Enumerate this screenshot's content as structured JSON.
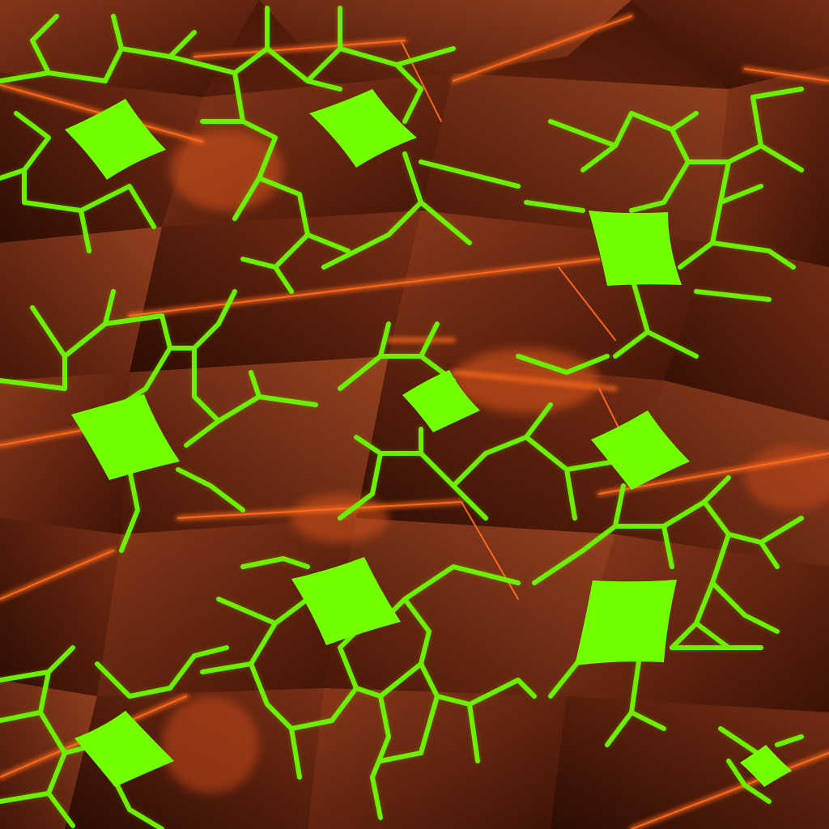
{
  "image": {
    "kind": "procedural-texture",
    "palette": {
      "base_dark": "#2e0d04",
      "base_mid": "#6b2612",
      "base_light": "#8a3a1e",
      "glow_orange": "#ff6a1a",
      "vein_green": "#6cf000",
      "vein_glow": "#9cff3a",
      "tile_green": "#72ff00"
    }
  }
}
